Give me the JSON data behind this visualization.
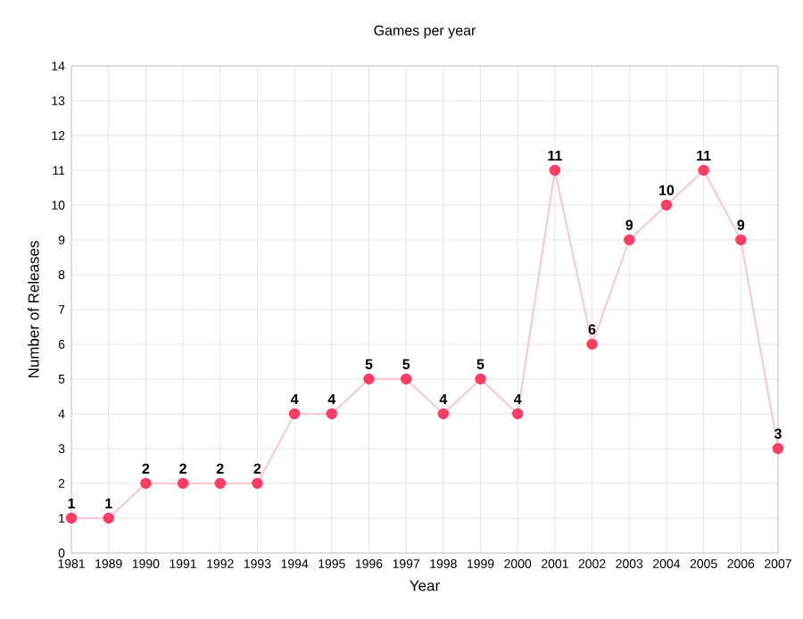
{
  "chart_data": {
    "type": "line",
    "title": "Games per year",
    "xlabel": "Year",
    "ylabel": "Number of Releases",
    "categories": [
      "1981",
      "1989",
      "1990",
      "1991",
      "1992",
      "1993",
      "1994",
      "1995",
      "1996",
      "1997",
      "1998",
      "1999",
      "2000",
      "2001",
      "2002",
      "2003",
      "2004",
      "2005",
      "2006",
      "2007"
    ],
    "series": [
      {
        "color": "#ff3d63",
        "values": [
          1,
          1,
          2,
          2,
          2,
          2,
          4,
          4,
          5,
          5,
          4,
          5,
          4,
          11,
          6,
          9,
          10,
          11,
          9,
          3
        ]
      }
    ],
    "ylim": [
      0,
      14
    ],
    "yticks": [
      0,
      1,
      2,
      3,
      4,
      5,
      6,
      7,
      8,
      9,
      10,
      11,
      12,
      13,
      14
    ],
    "grid": true,
    "marker": "circle",
    "line_style": "solid",
    "data_labels": true
  }
}
